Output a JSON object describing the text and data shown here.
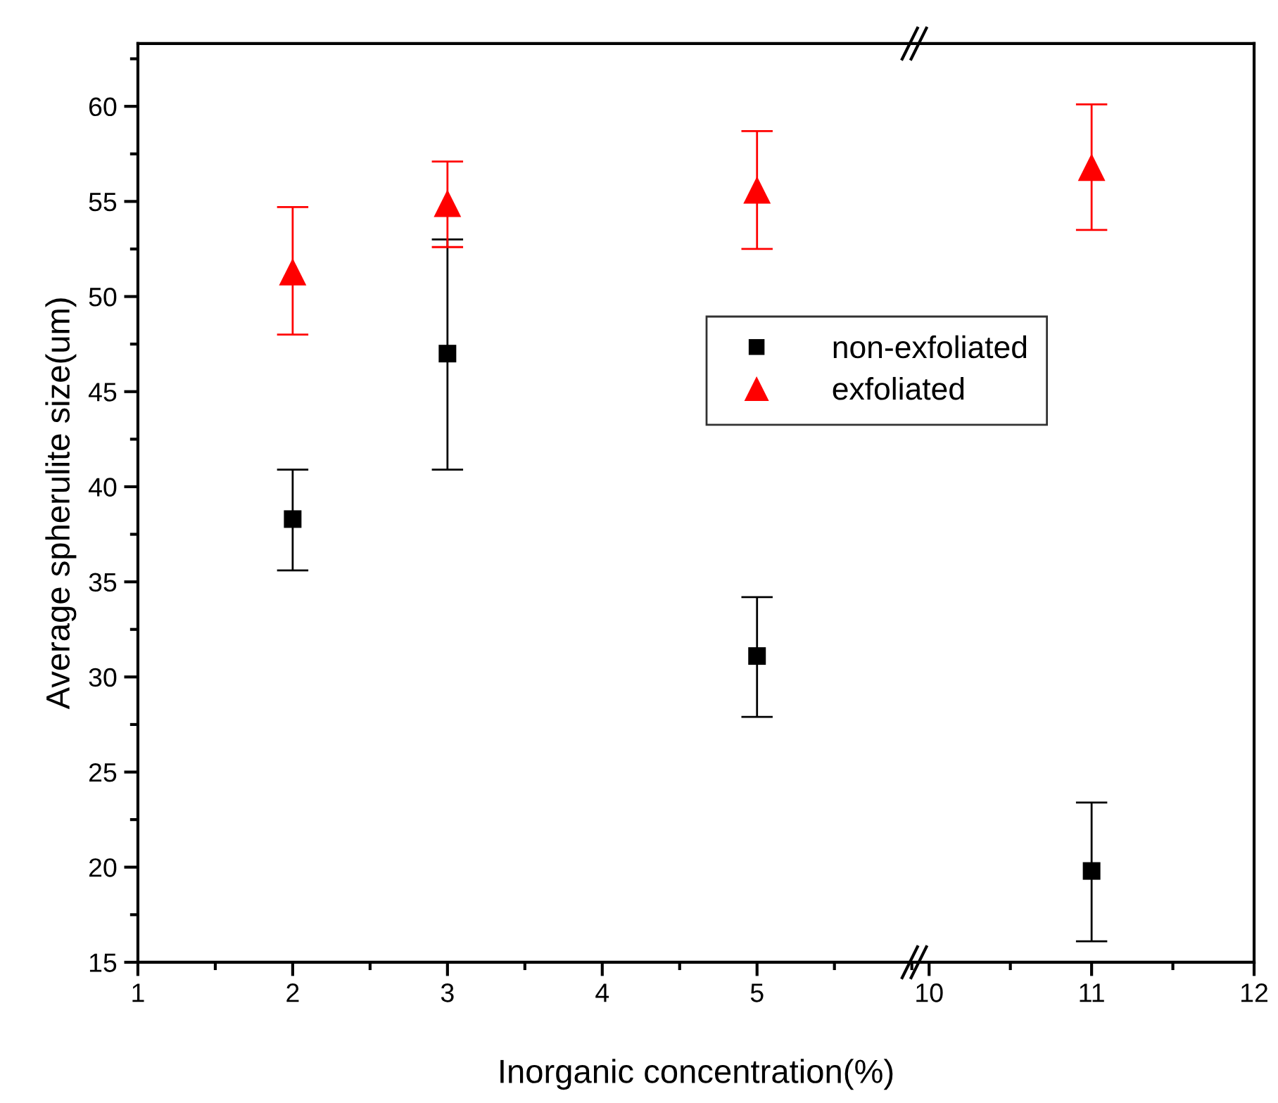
{
  "chart_data": [
    {
      "type": "scatter",
      "xlabel": "Inorganic concentration(%)",
      "ylabel": "Average spherulite size(um)",
      "xlim": [
        1,
        6.02
      ],
      "xticks": [
        1,
        2,
        3,
        4,
        5
      ],
      "ylim": [
        15,
        63.3
      ],
      "yticks": [
        15,
        20,
        25,
        30,
        35,
        40,
        45,
        50,
        55,
        60
      ],
      "legend": "right",
      "grid": false,
      "series": [
        {
          "name": "non-exfoliated",
          "color": "#000000",
          "marker": "square",
          "x": [
            2,
            3,
            5
          ],
          "values": [
            38.3,
            47.0,
            31.1
          ],
          "errors": [
            [
              35.6,
              40.9
            ],
            [
              40.9,
              53.0
            ],
            [
              27.9,
              34.2
            ]
          ]
        },
        {
          "name": "exfoliated",
          "color": "#ff0000",
          "marker": "triangle",
          "x": [
            2,
            3,
            5
          ],
          "values": [
            51.3,
            54.9,
            55.6
          ],
          "errors": [
            [
              48.0,
              54.7
            ],
            [
              52.6,
              57.1
            ],
            [
              52.5,
              58.7
            ]
          ]
        }
      ]
    },
    {
      "type": "scatter",
      "xlim": [
        9.93,
        12
      ],
      "xticks": [
        10,
        11,
        12
      ],
      "ylim": [
        15,
        63.3
      ],
      "tick_labels": "x",
      "grid": false,
      "series": [
        {
          "color": "#000000",
          "marker": "square",
          "x": [
            11
          ],
          "values": [
            19.8
          ],
          "errors": [
            [
              16.1,
              23.4
            ]
          ]
        },
        {
          "color": "#ff0000",
          "marker": "triangle",
          "x": [
            11
          ],
          "values": [
            56.8
          ],
          "errors": [
            [
              53.5,
              60.1
            ]
          ]
        }
      ]
    }
  ]
}
